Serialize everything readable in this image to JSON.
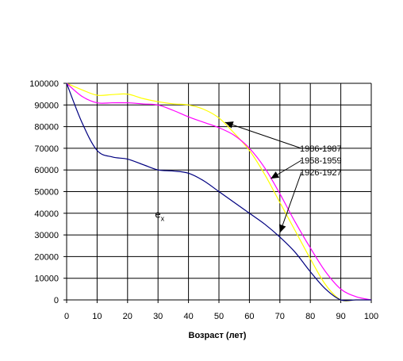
{
  "chart_data": {
    "type": "line",
    "title": "",
    "xlabel": "Возраст (лет)",
    "ylabel": "",
    "xlim": [
      0,
      100
    ],
    "ylim": [
      0,
      100000
    ],
    "x_ticks": [
      0,
      10,
      20,
      30,
      40,
      50,
      60,
      70,
      80,
      90,
      100
    ],
    "y_ticks": [
      0,
      10000,
      20000,
      30000,
      40000,
      50000,
      60000,
      70000,
      80000,
      90000,
      100000
    ],
    "grid": true,
    "legend": "none",
    "series": [
      {
        "name": "1986-1987",
        "color": "#ffff00",
        "x": [
          0,
          5,
          10,
          15,
          20,
          25,
          30,
          35,
          40,
          45,
          50,
          55,
          60,
          65,
          70,
          75,
          80,
          85,
          90,
          95,
          100
        ],
        "y": [
          100000,
          97000,
          94500,
          94800,
          95000,
          93000,
          91500,
          90500,
          90000,
          88000,
          84000,
          77000,
          69000,
          58000,
          45000,
          32000,
          19000,
          7000,
          0,
          0,
          0
        ]
      },
      {
        "name": "1958-1959",
        "color": "#ff00ff",
        "x": [
          0,
          5,
          10,
          15,
          20,
          25,
          30,
          35,
          40,
          45,
          50,
          55,
          60,
          65,
          70,
          75,
          80,
          85,
          90,
          95,
          100
        ],
        "y": [
          100000,
          94000,
          91000,
          91000,
          91000,
          90500,
          90000,
          87500,
          84500,
          82000,
          79500,
          76000,
          70000,
          61000,
          49000,
          36000,
          24000,
          13000,
          5000,
          1500,
          0
        ]
      },
      {
        "name": "1926-1927",
        "color": "#000080",
        "x": [
          0,
          5,
          10,
          15,
          20,
          25,
          30,
          35,
          40,
          45,
          50,
          55,
          60,
          65,
          70,
          75,
          80,
          85,
          90,
          95,
          100
        ],
        "y": [
          100000,
          82000,
          69000,
          66000,
          65000,
          62500,
          60000,
          59500,
          58500,
          55000,
          50000,
          45000,
          40000,
          35000,
          29000,
          22000,
          13000,
          5000,
          0,
          0,
          0
        ]
      }
    ],
    "annotations": [
      {
        "label": "1986-1987",
        "target_series": "1986-1987",
        "target_x": 52,
        "target_y": 82000
      },
      {
        "label": "1958-1959",
        "target_series": "1958-1959",
        "target_x": 67,
        "target_y": 56000
      },
      {
        "label": "1926-1927",
        "target_series": "1926-1927",
        "target_x": 70,
        "target_y": 31000
      }
    ],
    "inline_label": {
      "text": "e",
      "subscript": "x",
      "x": 29,
      "y": 38000
    }
  }
}
